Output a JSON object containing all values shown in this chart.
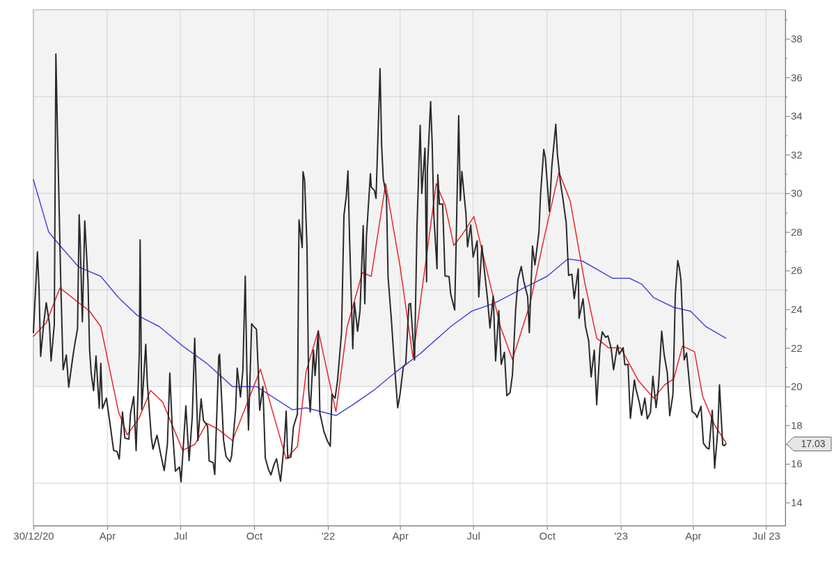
{
  "chart_data": {
    "type": "line",
    "xlim": [
      "2020-12-30",
      "2023-07-25"
    ],
    "xticks": [
      {
        "value": "2020-12-30",
        "label": "30/12/20"
      },
      {
        "value": "2021-04-01",
        "label": "Apr"
      },
      {
        "value": "2021-07-01",
        "label": "Jul"
      },
      {
        "value": "2021-10-01",
        "label": "Oct"
      },
      {
        "value": "2022-01-01",
        "label": "'22"
      },
      {
        "value": "2022-04-01",
        "label": "Apr"
      },
      {
        "value": "2022-07-01",
        "label": "Jul"
      },
      {
        "value": "2022-10-01",
        "label": "Oct"
      },
      {
        "value": "2023-01-01",
        "label": "'23"
      },
      {
        "value": "2023-04-01",
        "label": "Apr"
      },
      {
        "value": "2023-07-01",
        "label": "Jul 23"
      }
    ],
    "ylim": [
      12.8,
      39.5
    ],
    "yticks": [
      14,
      {
        "value": 15,
        "label": null
      },
      16,
      {
        "value": 17,
        "label": null
      },
      18,
      {
        "value": 19,
        "label": null
      },
      20,
      {
        "value": 21,
        "label": null
      },
      22,
      {
        "value": 23,
        "label": null
      },
      24,
      {
        "value": 25,
        "label": null
      },
      26,
      {
        "value": 27,
        "label": null
      },
      28,
      {
        "value": 29,
        "label": null
      },
      30,
      {
        "value": 31,
        "label": null
      },
      32,
      {
        "value": 33,
        "label": null
      },
      34,
      {
        "value": 35,
        "label": null
      },
      36,
      {
        "value": 37,
        "label": null
      },
      38,
      {
        "value": 39,
        "label": null
      }
    ],
    "grid": "x",
    "line_style": "solid",
    "bands": [
      {
        "axis": "y",
        "from": 20,
        "to": 39.5,
        "color": "#f3f3f3"
      }
    ],
    "ref_lines": [
      {
        "axis": "y",
        "value": 15,
        "color": "#d0d0d0"
      },
      {
        "axis": "y",
        "value": 20,
        "color": "#d0d0d0"
      },
      {
        "axis": "y",
        "value": 25,
        "color": "#d0d0d0"
      },
      {
        "axis": "y",
        "value": 30,
        "color": "#d0d0d0"
      },
      {
        "axis": "y",
        "value": 35,
        "color": "#d0d0d0"
      }
    ],
    "annotations": [
      "17.03"
    ],
    "series": [
      {
        "color": "#4646dc",
        "x": [
          "2020-12-30",
          "2021-01-18",
          "2021-02-01",
          "2021-02-24",
          "2021-03-24",
          "2021-04-15",
          "2021-05-08",
          "2021-06-05",
          "2021-07-04",
          "2021-08-03",
          "2021-09-04",
          "2021-10-04",
          "2021-11-18",
          "2021-12-05",
          "2022-01-11",
          "2022-01-30",
          "2022-02-27",
          "2022-03-25",
          "2022-04-26",
          "2022-06-03",
          "2022-06-29",
          "2022-07-27",
          "2022-09-02",
          "2022-10-01",
          "2022-10-27",
          "2022-11-14",
          "2022-12-22",
          "2023-01-12",
          "2023-01-27",
          "2023-02-11",
          "2023-03-08",
          "2023-03-29",
          "2023-04-17",
          "2023-05-12"
        ],
        "values": [
          30.7,
          28.0,
          27.3,
          26.2,
          25.7,
          24.6,
          23.7,
          23.1,
          22.1,
          21.2,
          20.0,
          20.0,
          18.8,
          18.9,
          18.5,
          19.0,
          19.8,
          20.7,
          21.7,
          23.1,
          23.9,
          24.3,
          25.1,
          25.7,
          26.6,
          26.5,
          25.6,
          25.6,
          25.3,
          24.6,
          24.1,
          23.9,
          23.1,
          22.5
        ]
      },
      {
        "color": "#e8262a",
        "x": [
          "2020-12-30",
          "2021-01-15",
          "2021-02-01",
          "2021-03-10",
          "2021-03-24",
          "2021-04-15",
          "2021-04-26",
          "2021-05-11",
          "2021-05-25",
          "2021-06-09",
          "2021-07-04",
          "2021-07-19",
          "2021-08-03",
          "2021-08-17",
          "2021-09-04",
          "2021-10-09",
          "2021-11-10",
          "2021-11-24",
          "2021-12-05",
          "2021-12-20",
          "2022-01-11",
          "2022-01-25",
          "2022-02-13",
          "2022-02-24",
          "2022-03-14",
          "2022-04-01",
          "2022-04-17",
          "2022-05-16",
          "2022-05-27",
          "2022-06-07",
          "2022-06-18",
          "2022-07-02",
          "2022-07-17",
          "2022-08-04",
          "2022-08-19",
          "2022-09-10",
          "2022-09-27",
          "2022-10-16",
          "2022-10-30",
          "2022-11-17",
          "2022-12-02",
          "2022-12-17",
          "2023-01-01",
          "2023-01-23",
          "2023-02-11",
          "2023-02-25",
          "2023-03-08",
          "2023-03-19",
          "2023-04-03",
          "2023-04-13",
          "2023-04-28",
          "2023-05-12"
        ],
        "values": [
          22.6,
          23.3,
          25.1,
          23.9,
          23.1,
          18.7,
          17.5,
          18.4,
          19.8,
          19.2,
          16.7,
          17.0,
          18.1,
          17.8,
          17.2,
          20.9,
          16.25,
          16.9,
          20.8,
          22.9,
          18.7,
          23.1,
          25.9,
          25.7,
          30.5,
          26.2,
          21.5,
          30.5,
          29.4,
          27.3,
          27.9,
          28.8,
          26.2,
          23.1,
          21.4,
          24.3,
          27.6,
          31.1,
          29.6,
          25.4,
          22.5,
          22.0,
          22.0,
          20.3,
          19.4,
          20.1,
          20.4,
          22.1,
          21.8,
          19.5,
          18.0,
          17.1
        ]
      },
      {
        "color": "#2a2a2a",
        "x": [
          "2020-12-30",
          "2021-01-04",
          "2021-01-06",
          "2021-01-08",
          "2021-01-12",
          "2021-01-15",
          "2021-01-19",
          "2021-01-21",
          "2021-01-25",
          "2021-01-27",
          "2021-01-29",
          "2021-02-02",
          "2021-02-05",
          "2021-02-09",
          "2021-02-12",
          "2021-02-17",
          "2021-02-19",
          "2021-02-23",
          "2021-02-25",
          "2021-02-26",
          "2021-03-01",
          "2021-03-04",
          "2021-03-08",
          "2021-03-10",
          "2021-03-12",
          "2021-03-15",
          "2021-03-18",
          "2021-03-22",
          "2021-03-24",
          "2021-03-26",
          "2021-03-31",
          "2021-04-05",
          "2021-04-09",
          "2021-04-13",
          "2021-04-16",
          "2021-04-20",
          "2021-04-23",
          "2021-04-28",
          "2021-04-30",
          "2021-05-04",
          "2021-05-07",
          "2021-05-11",
          "2021-05-12",
          "2021-05-14",
          "2021-05-19",
          "2021-05-21",
          "2021-05-26",
          "2021-05-28",
          "2021-06-02",
          "2021-06-07",
          "2021-06-11",
          "2021-06-15",
          "2021-06-18",
          "2021-06-21",
          "2021-06-25",
          "2021-06-30",
          "2021-07-02",
          "2021-07-08",
          "2021-07-12",
          "2021-07-16",
          "2021-07-19",
          "2021-07-23",
          "2021-07-27",
          "2021-07-30",
          "2021-08-04",
          "2021-08-06",
          "2021-08-11",
          "2021-08-13",
          "2021-08-18",
          "2021-08-19",
          "2021-08-24",
          "2021-08-27",
          "2021-09-01",
          "2021-09-03",
          "2021-09-08",
          "2021-09-10",
          "2021-09-14",
          "2021-09-17",
          "2021-09-20",
          "2021-09-22",
          "2021-09-24",
          "2021-09-28",
          "2021-09-30",
          "2021-10-04",
          "2021-10-06",
          "2021-10-08",
          "2021-10-12",
          "2021-10-15",
          "2021-10-19",
          "2021-10-22",
          "2021-10-26",
          "2021-10-29",
          "2021-11-03",
          "2021-11-08",
          "2021-11-10",
          "2021-11-12",
          "2021-11-16",
          "2021-11-19",
          "2021-11-24",
          "2021-11-26",
          "2021-11-30",
          "2021-12-01",
          "2021-12-03",
          "2021-12-06",
          "2021-12-08",
          "2021-12-10",
          "2021-12-14",
          "2021-12-16",
          "2021-12-20",
          "2021-12-22",
          "2021-12-27",
          "2021-12-31",
          "2022-01-04",
          "2022-01-06",
          "2022-01-10",
          "2022-01-13",
          "2022-01-18",
          "2022-01-21",
          "2022-01-24",
          "2022-01-26",
          "2022-01-28",
          "2022-02-01",
          "2022-02-03",
          "2022-02-07",
          "2022-02-10",
          "2022-02-14",
          "2022-02-16",
          "2022-02-18",
          "2022-02-23",
          "2022-02-24",
          "2022-02-28",
          "2022-03-02",
          "2022-03-07",
          "2022-03-09",
          "2022-03-11",
          "2022-03-15",
          "2022-03-17",
          "2022-03-21",
          "2022-03-24",
          "2022-03-29",
          "2022-04-01",
          "2022-04-05",
          "2022-04-08",
          "2022-04-12",
          "2022-04-14",
          "2022-04-19",
          "2022-04-22",
          "2022-04-26",
          "2022-04-28",
          "2022-05-02",
          "2022-05-04",
          "2022-05-05",
          "2022-05-09",
          "2022-05-11",
          "2022-05-13",
          "2022-05-17",
          "2022-05-18",
          "2022-05-20",
          "2022-05-24",
          "2022-05-27",
          "2022-06-01",
          "2022-06-03",
          "2022-06-08",
          "2022-06-10",
          "2022-06-13",
          "2022-06-15",
          "2022-06-17",
          "2022-06-22",
          "2022-06-24",
          "2022-06-28",
          "2022-07-01",
          "2022-07-06",
          "2022-07-08",
          "2022-07-12",
          "2022-07-14",
          "2022-07-19",
          "2022-07-22",
          "2022-07-26",
          "2022-07-29",
          "2022-08-02",
          "2022-08-05",
          "2022-08-09",
          "2022-08-12",
          "2022-08-16",
          "2022-08-19",
          "2022-08-23",
          "2022-08-26",
          "2022-08-30",
          "2022-09-02",
          "2022-09-07",
          "2022-09-09",
          "2022-09-13",
          "2022-09-16",
          "2022-09-21",
          "2022-09-23",
          "2022-09-27",
          "2022-09-29",
          "2022-10-04",
          "2022-10-07",
          "2022-10-12",
          "2022-10-14",
          "2022-10-18",
          "2022-10-21",
          "2022-10-25",
          "2022-10-28",
          "2022-11-01",
          "2022-11-04",
          "2022-11-09",
          "2022-11-10",
          "2022-11-15",
          "2022-11-18",
          "2022-11-22",
          "2022-11-25",
          "2022-11-29",
          "2022-12-02",
          "2022-12-06",
          "2022-12-09",
          "2022-12-13",
          "2022-12-16",
          "2022-12-20",
          "2022-12-23",
          "2022-12-28",
          "2022-12-30",
          "2023-01-04",
          "2023-01-06",
          "2023-01-10",
          "2023-01-13",
          "2023-01-18",
          "2023-01-20",
          "2023-01-24",
          "2023-01-27",
          "2023-01-31",
          "2023-02-03",
          "2023-02-07",
          "2023-02-10",
          "2023-02-14",
          "2023-02-17",
          "2023-02-21",
          "2023-02-24",
          "2023-02-28",
          "2023-03-03",
          "2023-03-07",
          "2023-03-10",
          "2023-03-13",
          "2023-03-15",
          "2023-03-17",
          "2023-03-21",
          "2023-03-24",
          "2023-03-28",
          "2023-03-31",
          "2023-04-04",
          "2023-04-06",
          "2023-04-11",
          "2023-04-14",
          "2023-04-18",
          "2023-04-21",
          "2023-04-25",
          "2023-04-28",
          "2023-05-02",
          "2023-05-04",
          "2023-05-08",
          "2023-05-10",
          "2023-05-12"
        ],
        "values": [
          22.8,
          26.97,
          25.07,
          21.56,
          23.33,
          24.34,
          23.24,
          21.32,
          23.19,
          37.21,
          33.09,
          25.56,
          20.87,
          21.63,
          19.97,
          21.5,
          22.05,
          23.0,
          28.89,
          27.95,
          23.35,
          28.57,
          25.47,
          21.91,
          20.69,
          19.79,
          21.58,
          18.88,
          21.2,
          18.86,
          19.4,
          17.91,
          16.69,
          16.65,
          16.25,
          18.68,
          17.33,
          17.28,
          18.61,
          19.48,
          16.69,
          21.84,
          27.59,
          18.81,
          22.18,
          20.15,
          17.36,
          16.76,
          17.48,
          16.42,
          15.65,
          17.02,
          20.7,
          17.89,
          15.62,
          15.83,
          15.07,
          19.0,
          16.17,
          18.45,
          22.5,
          17.2,
          19.36,
          18.24,
          17.97,
          16.15,
          16.06,
          15.45,
          21.57,
          21.67,
          17.22,
          16.39,
          16.11,
          16.41,
          18.8,
          20.95,
          19.46,
          20.81,
          25.71,
          20.87,
          17.75,
          23.25,
          23.14,
          22.96,
          21.0,
          18.77,
          20.0,
          16.3,
          15.7,
          15.43,
          15.98,
          16.26,
          15.1,
          17.22,
          18.73,
          16.29,
          16.37,
          17.91,
          18.58,
          28.62,
          27.19,
          31.12,
          30.67,
          27.18,
          19.9,
          18.69,
          21.89,
          20.57,
          22.87,
          18.63,
          17.68,
          17.22,
          16.91,
          19.61,
          19.4,
          20.31,
          22.79,
          28.85,
          29.9,
          31.16,
          27.66,
          21.96,
          24.35,
          22.86,
          23.91,
          28.33,
          24.29,
          27.75,
          31.02,
          30.32,
          30.15,
          29.74,
          36.45,
          32.45,
          30.75,
          29.83,
          25.67,
          23.53,
          21.67,
          18.9,
          19.63,
          21.03,
          21.16,
          24.26,
          24.3,
          21.37,
          28.21,
          33.52,
          29.99,
          32.34,
          25.42,
          31.2,
          34.75,
          32.56,
          28.87,
          26.1,
          30.96,
          29.43,
          29.45,
          25.72,
          25.69,
          24.79,
          23.96,
          27.75,
          34.02,
          29.62,
          31.13,
          28.95,
          27.23,
          28.36,
          26.7,
          27.54,
          24.64,
          27.29,
          26.4,
          24.5,
          23.03,
          24.69,
          21.33,
          23.93,
          21.15,
          21.77,
          19.53,
          19.69,
          20.6,
          24.0,
          25.56,
          26.21,
          25.47,
          24.64,
          22.79,
          27.27,
          26.3,
          27.99,
          29.92,
          32.27,
          31.84,
          29.07,
          31.36,
          33.57,
          32.02,
          30.5,
          29.69,
          28.46,
          25.75,
          25.81,
          24.55,
          26.09,
          23.53,
          24.54,
          23.12,
          22.36,
          20.5,
          21.89,
          19.06,
          22.01,
          22.83,
          22.55,
          22.62,
          21.97,
          20.87,
          22.14,
          21.67,
          22.01,
          21.13,
          21.15,
          18.35,
          20.34,
          19.85,
          19.2,
          18.51,
          19.4,
          18.33,
          18.66,
          20.53,
          18.91,
          20.02,
          22.87,
          21.67,
          20.7,
          18.49,
          19.59,
          24.8,
          26.52,
          26.14,
          25.51,
          21.38,
          21.74,
          19.97,
          18.7,
          18.58,
          18.4,
          18.97,
          17.07,
          16.83,
          16.77,
          18.76,
          15.78,
          17.78,
          20.09,
          16.98,
          16.94,
          17.03
        ]
      }
    ]
  }
}
